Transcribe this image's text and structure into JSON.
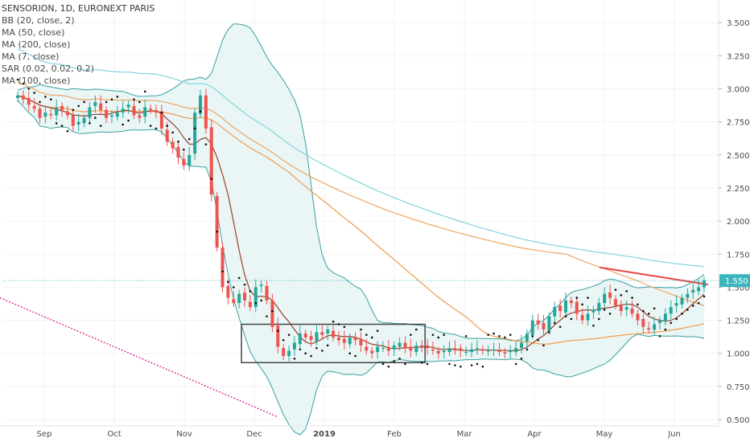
{
  "chart_data": {
    "type": "candlestick",
    "title": "SENSORION, 1D, EURONEXT PARIS",
    "indicators": [
      "BB (20, close, 2)",
      "MA (50, close)",
      "MA (200, close)",
      "MA (7, close)",
      "SAR (0.02, 0.02, 0.2)",
      "MA (100, close)"
    ],
    "x_tick_labels": [
      "Sep",
      "Oct",
      "Nov",
      "Dec",
      "2019",
      "Feb",
      "Mar",
      "Apr",
      "May",
      "Jun"
    ],
    "y_tick_labels": [
      "3.500",
      "3.250",
      "3.000",
      "2.750",
      "2.500",
      "2.250",
      "2.000",
      "1.750",
      "1.500",
      "1.250",
      "1.000",
      "0.750",
      "0.500"
    ],
    "ylim": [
      0.5,
      3.55
    ],
    "last_price_label": "1.550",
    "last_price": 1.55,
    "colors": {
      "up": "#26a69a",
      "down": "#ef5350",
      "bb": "#3aa0a0",
      "bb_fill": "#e3f4f2",
      "ma50": "#f39a4a",
      "ma200": "#7fd4de",
      "ma7": "#9b3f2a",
      "ma100": "#f0a560",
      "sar": "#111111",
      "trend_pink": "#e0218a",
      "resistance": "#e84646",
      "price_line": "#42b8c0",
      "badge_bg": "#3cb6bd",
      "box": "#444444"
    },
    "series": [
      {
        "name": "close",
        "values": [
          2.95,
          2.92,
          2.88,
          2.85,
          2.78,
          2.82,
          2.8,
          2.86,
          2.84,
          2.8,
          2.72,
          2.75,
          2.78,
          2.86,
          2.9,
          2.84,
          2.78,
          2.8,
          2.82,
          2.85,
          2.88,
          2.8,
          2.78,
          2.86,
          2.84,
          2.82,
          2.7,
          2.6,
          2.55,
          2.48,
          2.42,
          2.5,
          2.82,
          2.95,
          2.7,
          2.2,
          1.8,
          1.5,
          1.42,
          1.38,
          1.45,
          1.4,
          1.35,
          1.5,
          1.52,
          1.4,
          1.2,
          1.05,
          0.98,
          1.02,
          1.08,
          1.15,
          1.12,
          1.1,
          1.16,
          1.14,
          1.18,
          1.12,
          1.1,
          1.08,
          1.12,
          1.1,
          1.06,
          1.02,
          1.0,
          1.05,
          1.04,
          1.02,
          1.06,
          1.08,
          1.04,
          1.02,
          1.06,
          1.05,
          1.04,
          1.02,
          1.0,
          1.02,
          1.04,
          1.03,
          1.02,
          1.01,
          1.03,
          1.04,
          1.02,
          1.02,
          1.03,
          1.01,
          1.0,
          1.02,
          1.04,
          1.08,
          1.15,
          1.25,
          1.22,
          1.18,
          1.28,
          1.35,
          1.32,
          1.4,
          1.38,
          1.3,
          1.25,
          1.3,
          1.33,
          1.38,
          1.45,
          1.42,
          1.36,
          1.32,
          1.35,
          1.3,
          1.25,
          1.2,
          1.18,
          1.22,
          1.25,
          1.3,
          1.35,
          1.38,
          1.42,
          1.45,
          1.48,
          1.5,
          1.55
        ]
      }
    ]
  }
}
